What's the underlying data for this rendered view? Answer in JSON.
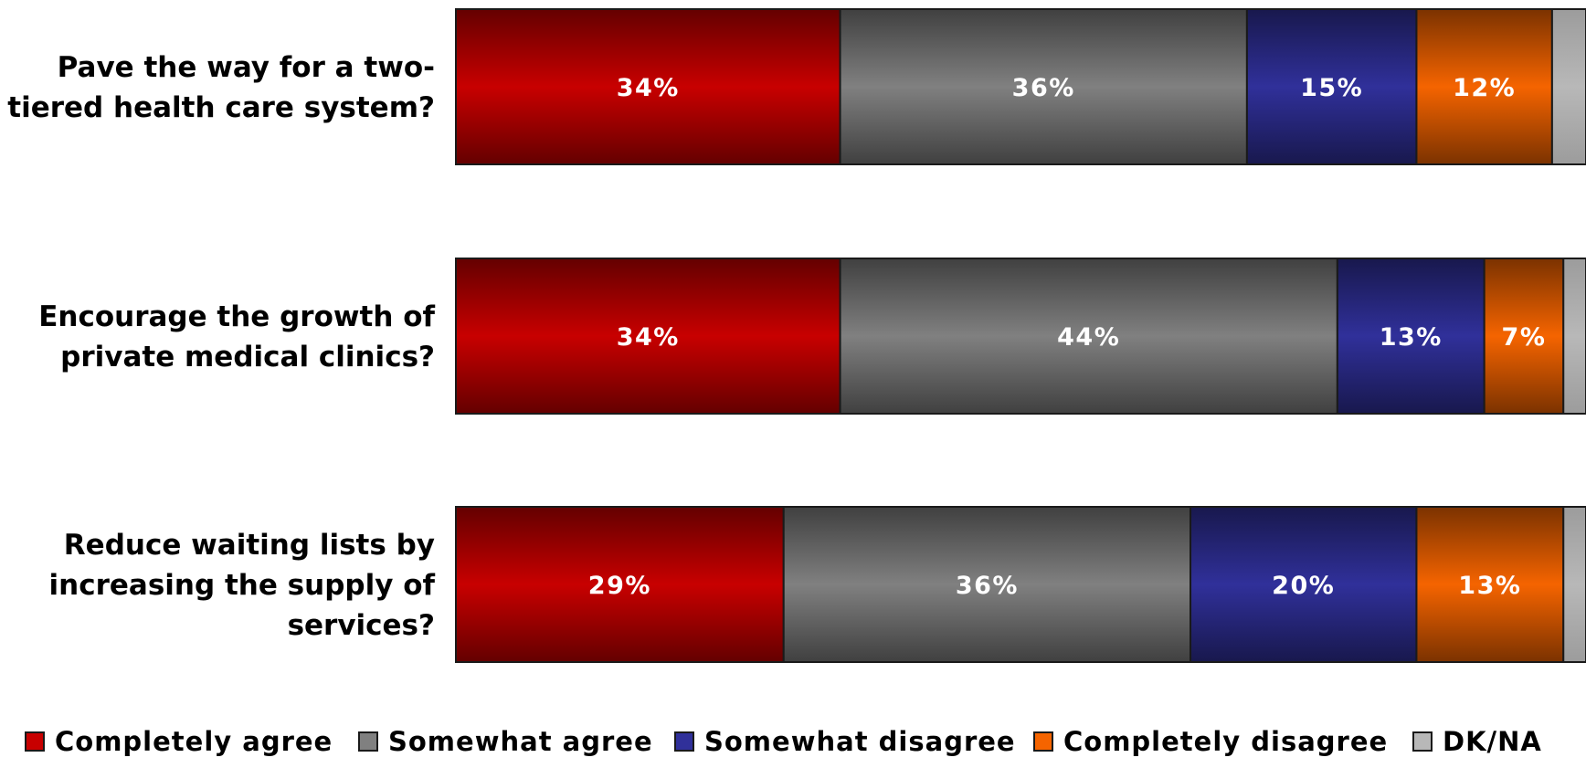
{
  "chart_data": {
    "type": "bar",
    "orientation": "horizontal",
    "stacked": true,
    "normalized": true,
    "categories": [
      "Pave the way for a two-tiered health care system?",
      "Encourage the growth of private medical clinics?",
      "Reduce waiting lists by increasing the supply of services?"
    ],
    "category_lines": [
      [
        "Pave the way for a two-",
        "tiered health care system?"
      ],
      [
        "Encourage the growth of",
        "private medical clinics?"
      ],
      [
        "Reduce waiting lists by",
        "increasing the supply of",
        "services?"
      ]
    ],
    "series": [
      {
        "name": "Completely agree",
        "values": [
          34,
          34,
          29
        ],
        "labels": [
          "34%",
          "34%",
          "29%"
        ]
      },
      {
        "name": "Somewhat agree",
        "values": [
          36,
          44,
          36
        ],
        "labels": [
          "36%",
          "44%",
          "36%"
        ]
      },
      {
        "name": "Somewhat disagree",
        "values": [
          15,
          13,
          20
        ],
        "labels": [
          "15%",
          "13%",
          "20%"
        ]
      },
      {
        "name": "Completely disagree",
        "values": [
          12,
          7,
          13
        ],
        "labels": [
          "12%",
          "7%",
          "13%"
        ]
      },
      {
        "name": "DK/NA",
        "values": [
          3,
          2,
          2
        ],
        "labels": [
          "",
          "",
          ""
        ]
      }
    ],
    "xlim": [
      0,
      100
    ],
    "grid": false,
    "legend_position": "bottom",
    "colors": {
      "Completely agree": "#c80000",
      "Somewhat agree": "#808080",
      "Somewhat disagree": "#30309a",
      "Completely disagree": "#f56400",
      "DK/NA": "#b8b8b8"
    }
  }
}
